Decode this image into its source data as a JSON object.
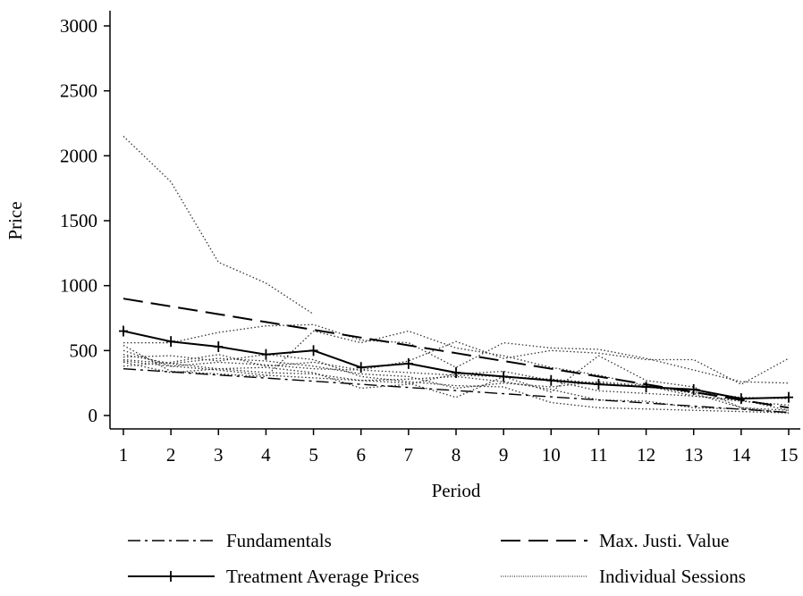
{
  "chart_data": {
    "type": "line",
    "xlabel": "Period",
    "ylabel": "Price",
    "xlim": [
      1,
      15
    ],
    "ylim": [
      0,
      3000
    ],
    "x_ticks": [
      1,
      2,
      3,
      4,
      5,
      6,
      7,
      8,
      9,
      10,
      11,
      12,
      13,
      14,
      15
    ],
    "y_ticks": [
      0,
      500,
      1000,
      1500,
      2000,
      2500,
      3000
    ],
    "grid": false,
    "legend_position": "bottom",
    "x": [
      1,
      2,
      3,
      4,
      5,
      6,
      7,
      8,
      9,
      10,
      11,
      12,
      13,
      14,
      15
    ],
    "series": [
      {
        "name": "Fundamentals",
        "style": "dash-dot",
        "values": [
          360,
          336,
          312,
          288,
          264,
          240,
          216,
          192,
          168,
          144,
          120,
          96,
          72,
          48,
          24
        ]
      },
      {
        "name": "Max. Justi. Value",
        "style": "long-dash",
        "values": [
          900,
          840,
          780,
          720,
          660,
          600,
          540,
          480,
          420,
          360,
          300,
          240,
          180,
          120,
          60
        ]
      },
      {
        "name": "Treatment Average Prices",
        "style": "solid-plus",
        "values": [
          650,
          570,
          530,
          470,
          500,
          370,
          400,
          330,
          300,
          270,
          240,
          220,
          200,
          130,
          140
        ]
      },
      {
        "name": "Individual Sessions",
        "style": "dotted",
        "sessions": [
          [
            2150,
            1800,
            1180,
            1020,
            780
          ],
          [
            540,
            340,
            320,
            300,
            650,
            560,
            650,
            520,
            460,
            370,
            310,
            230,
            150,
            120,
            40
          ],
          [
            470,
            400,
            360,
            330,
            320,
            270,
            280,
            300,
            260,
            200,
            120,
            110,
            60,
            50,
            20
          ],
          [
            430,
            400,
            440,
            420,
            380,
            320,
            300,
            210,
            250,
            220,
            260,
            230,
            170,
            60,
            40
          ],
          [
            420,
            380,
            350,
            310,
            290,
            270,
            250,
            140,
            300,
            180,
            460,
            270,
            220,
            60,
            20
          ],
          [
            500,
            380,
            410,
            390,
            360,
            350,
            330,
            310,
            300,
            280,
            250,
            220,
            180,
            140,
            130
          ],
          [
            560,
            560,
            640,
            690,
            700,
            580,
            560,
            370,
            560,
            520,
            510,
            440,
            350,
            260,
            250
          ],
          [
            410,
            330,
            360,
            370,
            330,
            210,
            240,
            320,
            340,
            270,
            190,
            170,
            150,
            110,
            80
          ],
          [
            380,
            410,
            470,
            380,
            410,
            350,
            420,
            570,
            440,
            500,
            480,
            430,
            430,
            240,
            440
          ],
          [
            450,
            460,
            420,
            470,
            430,
            300,
            260,
            230,
            220,
            100,
            60,
            50,
            40,
            30,
            20
          ]
        ]
      }
    ],
    "legend": [
      {
        "label": "Fundamentals",
        "style": "dash-dot"
      },
      {
        "label": "Max. Justi. Value",
        "style": "long-dash"
      },
      {
        "label": "Treatment Average Prices",
        "style": "solid-plus"
      },
      {
        "label": "Individual Sessions",
        "style": "dotted"
      }
    ]
  }
}
